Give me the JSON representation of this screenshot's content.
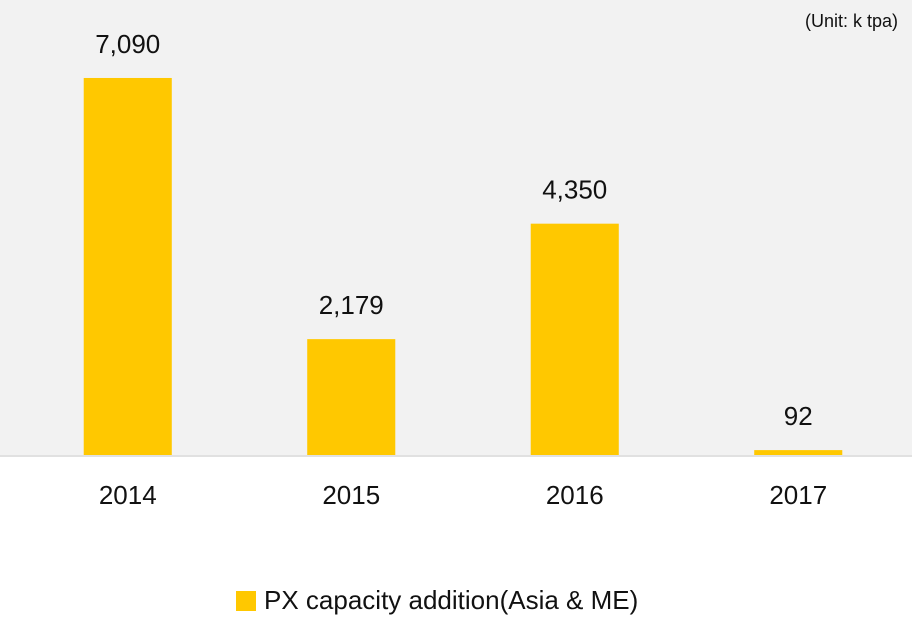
{
  "chart_data": {
    "type": "bar",
    "annotation": "(Unit: k tpa)",
    "categories": [
      "2014",
      "2015",
      "2016",
      "2017"
    ],
    "series": [
      {
        "name": "PX capacity addition(Asia & ME)",
        "color": "#ffc800",
        "values": [
          7090,
          2179,
          4350,
          92
        ],
        "value_labels": [
          "7,090",
          "2,179",
          "4,350",
          "92"
        ]
      }
    ],
    "ylim": [
      0,
      8500
    ]
  }
}
